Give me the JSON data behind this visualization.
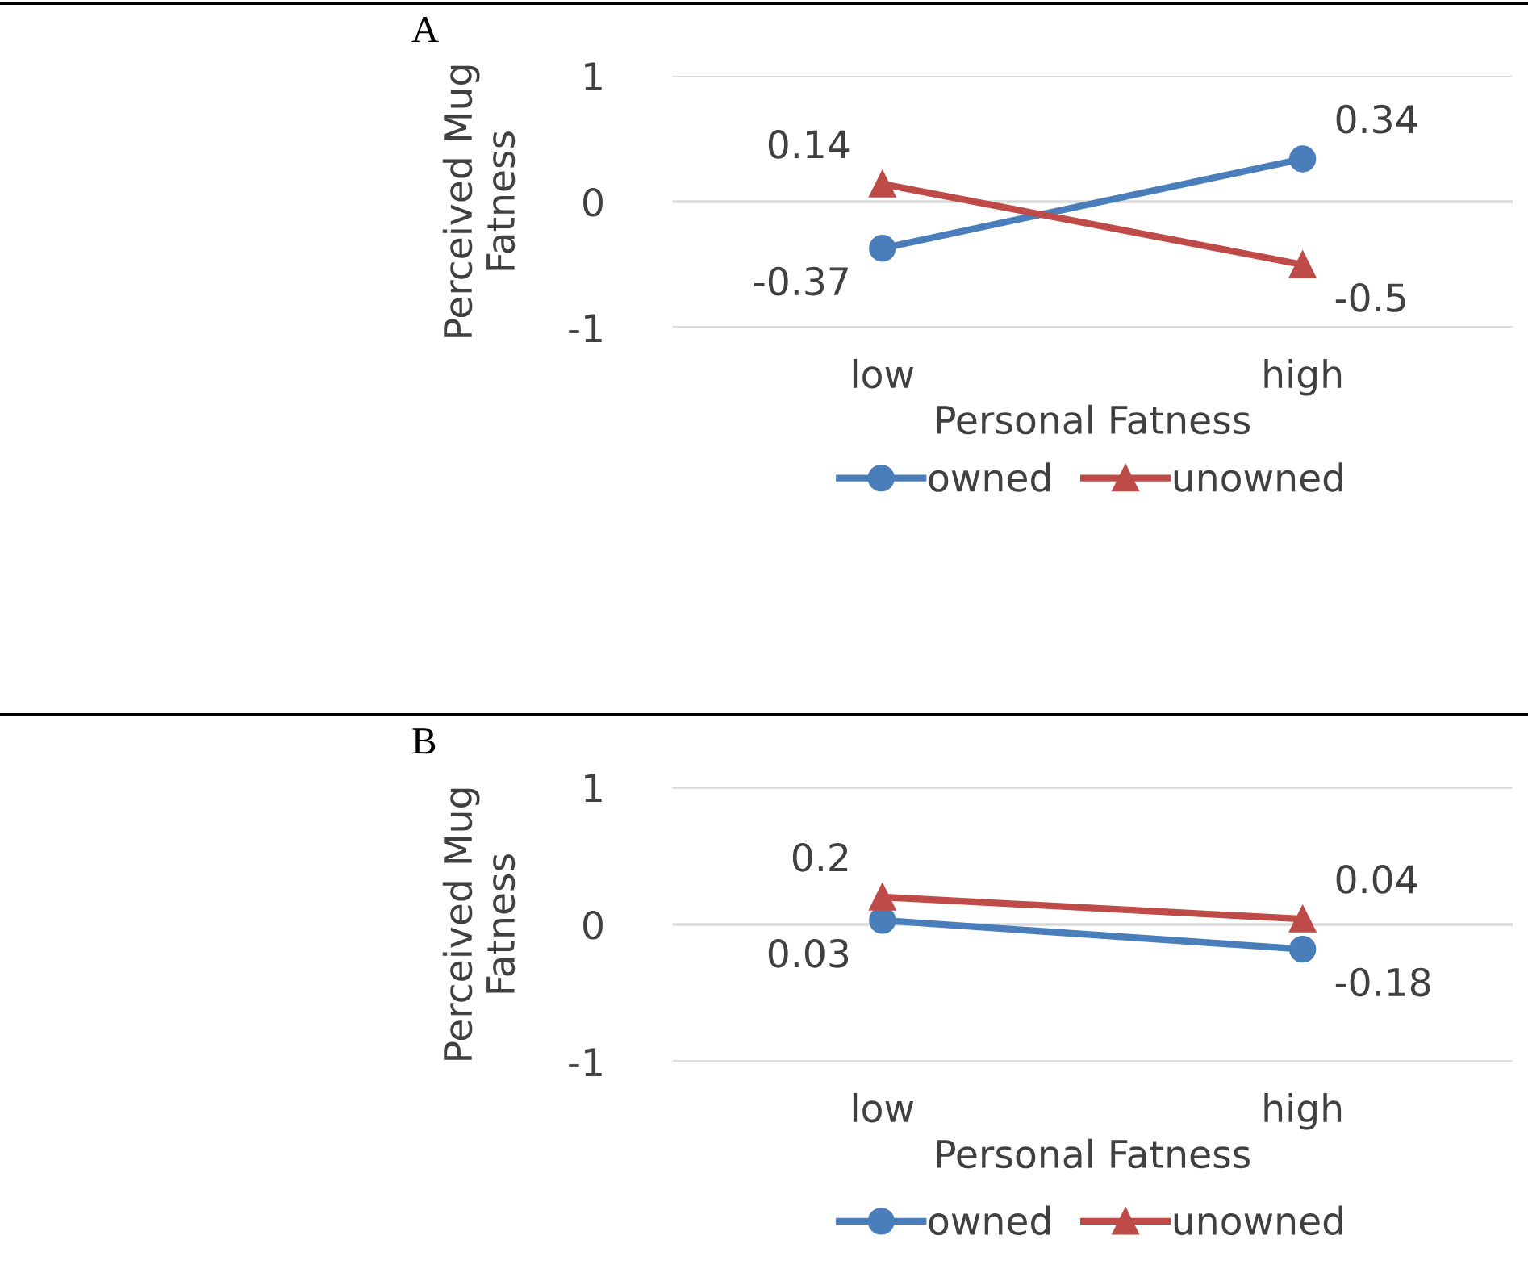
{
  "chart_data": [
    {
      "type": "line",
      "title": "A",
      "xlabel": "Personal Fatness",
      "ylabel": "Perceived Mug\nFatness",
      "categories": [
        "low",
        "high"
      ],
      "ylim": [
        -1,
        1
      ],
      "yticks": [
        -1,
        0,
        1
      ],
      "grid": "y",
      "legend": "bottom",
      "data_labels": true,
      "series": [
        {
          "name": "owned",
          "color": "#4a7ebb",
          "marker": "circle",
          "values": [
            -0.37,
            0.34
          ]
        },
        {
          "name": "unowned",
          "color": "#be4b48",
          "marker": "triangle",
          "values": [
            0.14,
            -0.5
          ]
        }
      ]
    },
    {
      "type": "line",
      "title": "B",
      "xlabel": "Personal Fatness",
      "ylabel": "Perceived Mug\nFatness",
      "categories": [
        "low",
        "high"
      ],
      "ylim": [
        -1,
        1
      ],
      "yticks": [
        -1,
        0,
        1
      ],
      "grid": "y",
      "legend": "bottom",
      "data_labels": true,
      "series": [
        {
          "name": "owned",
          "color": "#4a7ebb",
          "marker": "circle",
          "values": [
            0.03,
            -0.18
          ]
        },
        {
          "name": "unowned",
          "color": "#be4b48",
          "marker": "triangle",
          "values": [
            0.2,
            0.04
          ]
        }
      ]
    }
  ]
}
